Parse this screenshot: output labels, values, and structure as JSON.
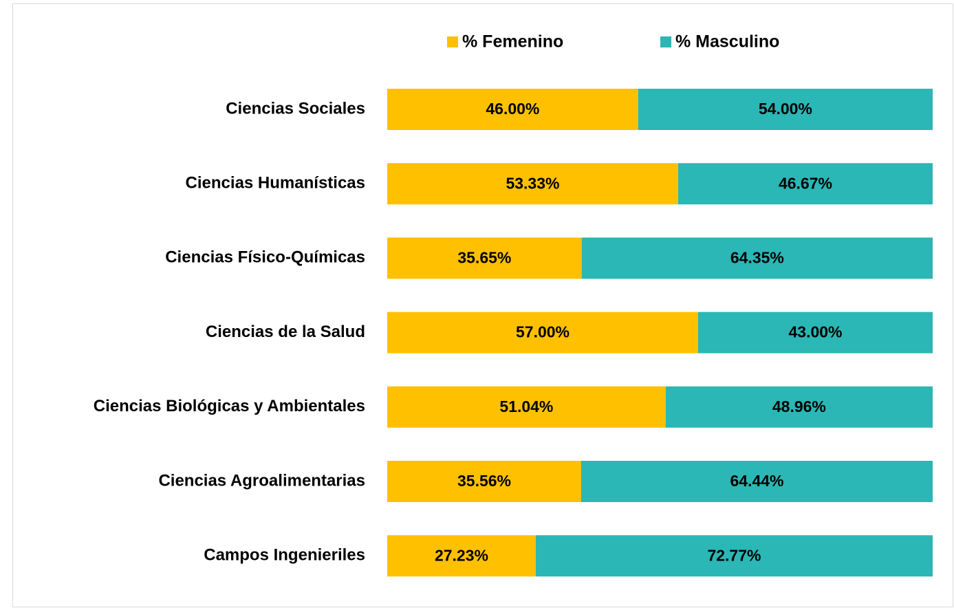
{
  "chart_data": {
    "type": "stacked_bar_horizontal",
    "categories": [
      "Ciencias Sociales",
      "Ciencias Humanísticas",
      "Ciencias Físico-Químicas",
      "Ciencias de la Salud",
      "Ciencias Biológicas y Ambientales",
      "Ciencias Agroalimentarias",
      "Campos Ingenieriles"
    ],
    "series": [
      {
        "name": "% Femenino",
        "color": "#FFC000",
        "values": [
          46.0,
          53.33,
          35.65,
          57.0,
          51.04,
          35.56,
          27.23
        ],
        "value_labels": [
          "46.00%",
          "53.33%",
          "35.65%",
          "57.00%",
          "51.04%",
          "35.56%",
          "27.23%"
        ]
      },
      {
        "name": "% Masculino",
        "color": "#2AB7B5",
        "values": [
          54.0,
          46.67,
          64.35,
          43.0,
          48.96,
          64.44,
          72.77
        ],
        "value_labels": [
          "54.00%",
          "46.67%",
          "64.35%",
          "43.00%",
          "48.96%",
          "64.44%",
          "72.77%"
        ]
      }
    ],
    "xlim": [
      0,
      100
    ],
    "legend": "top"
  }
}
